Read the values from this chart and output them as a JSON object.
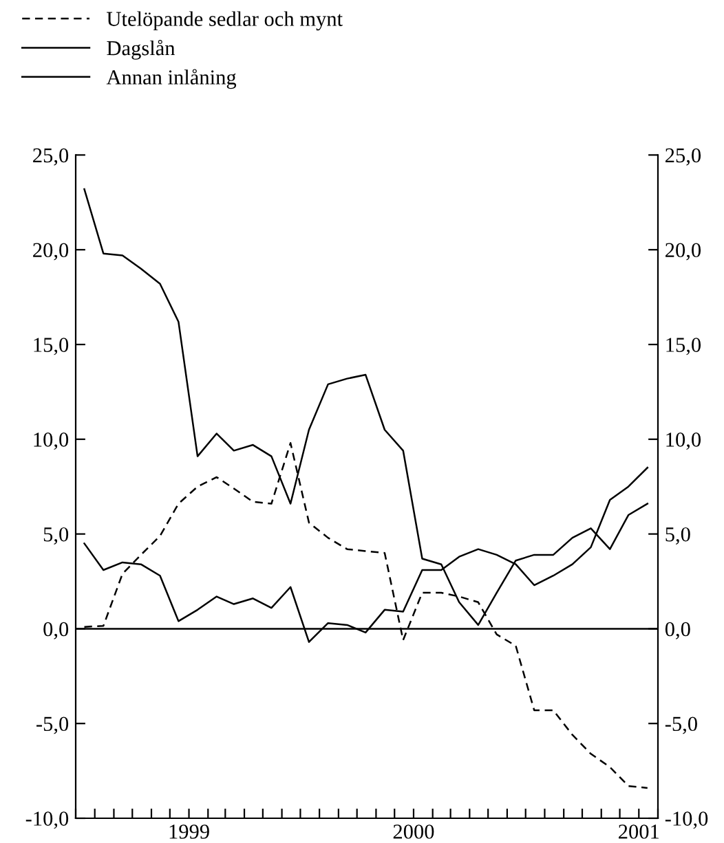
{
  "chart_data": {
    "type": "line",
    "x": [
      "1998-07-15",
      "1998-08-15",
      "1998-09-15",
      "1998-10-15",
      "1998-11-15",
      "1998-12-15",
      "1999-01-15",
      "1999-02-15",
      "1999-03-15",
      "1999-04-15",
      "1999-05-15",
      "1999-06-15",
      "1999-07-15",
      "1999-08-15",
      "1999-09-15",
      "1999-10-15",
      "1999-11-15",
      "1999-12-15",
      "2000-01-15",
      "2000-02-15",
      "2000-03-15",
      "2000-04-15",
      "2000-05-15",
      "2000-06-15",
      "2000-07-15",
      "2000-08-15",
      "2000-09-15",
      "2000-10-15",
      "2000-11-15",
      "2000-12-15",
      "2001-01-15"
    ],
    "series": [
      {
        "name": "Utelöpande sedlar och mynt",
        "color": "#000000",
        "line_style": "dashed",
        "values": [
          0.1,
          0.15,
          2.9,
          3.9,
          4.9,
          6.6,
          7.5,
          8.0,
          7.4,
          6.7,
          6.6,
          9.8,
          5.6,
          4.8,
          4.2,
          4.1,
          4.0,
          -0.6,
          1.9,
          1.9,
          1.7,
          1.4,
          -0.3,
          -0.9,
          -4.3,
          -4.3,
          -5.6,
          -6.6,
          -7.3,
          -8.3,
          -8.4
        ]
      },
      {
        "name": "Dagslån",
        "color": "#000000",
        "line_style": "solid",
        "values": [
          23.2,
          19.8,
          19.7,
          19.0,
          18.2,
          16.2,
          9.1,
          10.3,
          9.4,
          9.7,
          9.1,
          6.6,
          10.5,
          12.9,
          13.2,
          13.4,
          10.5,
          9.4,
          3.7,
          3.4,
          1.4,
          0.2,
          1.9,
          3.6,
          3.9,
          3.9,
          4.8,
          5.3,
          4.2,
          6.0,
          6.6
        ]
      },
      {
        "name": "Annan inlåning",
        "color": "#000000",
        "line_style": "solid",
        "values": [
          4.5,
          3.1,
          3.5,
          3.4,
          2.8,
          0.4,
          1.0,
          1.7,
          1.3,
          1.6,
          1.1,
          2.2,
          -0.7,
          0.3,
          0.2,
          -0.2,
          1.0,
          0.9,
          3.1,
          3.1,
          3.8,
          4.2,
          3.9,
          3.4,
          2.3,
          2.8,
          3.4,
          4.3,
          6.8,
          7.5,
          8.5
        ]
      }
    ],
    "xlim": [
      "1998-07-01",
      "2001-02-01"
    ],
    "xticks": [
      {
        "value": "1998-07-01",
        "label": null
      },
      {
        "value": "1998-08-01",
        "label": null
      },
      {
        "value": "1998-09-01",
        "label": null
      },
      {
        "value": "1998-10-01",
        "label": null
      },
      {
        "value": "1998-11-01",
        "label": null
      },
      {
        "value": "1998-12-01",
        "label": null
      },
      {
        "value": "1999-01-01",
        "label": "1999"
      },
      {
        "value": "1999-02-01",
        "label": null
      },
      {
        "value": "1999-03-01",
        "label": null
      },
      {
        "value": "1999-04-01",
        "label": null
      },
      {
        "value": "1999-05-01",
        "label": null
      },
      {
        "value": "1999-06-01",
        "label": null
      },
      {
        "value": "1999-07-01",
        "label": null
      },
      {
        "value": "1999-08-01",
        "label": null
      },
      {
        "value": "1999-09-01",
        "label": null
      },
      {
        "value": "1999-10-01",
        "label": null
      },
      {
        "value": "1999-11-01",
        "label": null
      },
      {
        "value": "1999-12-01",
        "label": null
      },
      {
        "value": "2000-01-01",
        "label": "2000"
      },
      {
        "value": "2000-02-01",
        "label": null
      },
      {
        "value": "2000-03-01",
        "label": null
      },
      {
        "value": "2000-04-01",
        "label": null
      },
      {
        "value": "2000-05-01",
        "label": null
      },
      {
        "value": "2000-06-01",
        "label": null
      },
      {
        "value": "2000-07-01",
        "label": null
      },
      {
        "value": "2000-08-01",
        "label": null
      },
      {
        "value": "2000-09-01",
        "label": null
      },
      {
        "value": "2000-10-01",
        "label": null
      },
      {
        "value": "2000-11-01",
        "label": null
      },
      {
        "value": "2000-12-01",
        "label": null
      },
      {
        "value": "2001-01-01",
        "label": "2001"
      },
      {
        "value": "2001-02-01",
        "label": null
      }
    ],
    "ylim": [
      -10,
      25
    ],
    "yticks": [
      {
        "value": -10,
        "label": "-10,0"
      },
      {
        "value": -5,
        "label": "-5,0"
      },
      {
        "value": 0,
        "label": "0,0"
      },
      {
        "value": 5,
        "label": "5,0"
      },
      {
        "value": 10,
        "label": "10,0"
      },
      {
        "value": 15,
        "label": "15,0"
      },
      {
        "value": 20,
        "label": "20,0"
      },
      {
        "value": 25,
        "label": "25,0"
      }
    ],
    "y2lim": [
      -10,
      25
    ],
    "y2ticks": [
      {
        "value": -10,
        "label": "-10,0"
      },
      {
        "value": -5,
        "label": "-5,0"
      },
      {
        "value": 0,
        "label": "0,0"
      },
      {
        "value": 5,
        "label": "5,0"
      },
      {
        "value": 10,
        "label": "10,0"
      },
      {
        "value": 15,
        "label": "15,0"
      },
      {
        "value": 20,
        "label": "20,0"
      },
      {
        "value": 25,
        "label": "25,0"
      }
    ],
    "ref_lines": [
      {
        "axis": "y",
        "value": 0,
        "color": "#000000",
        "line_style": "solid"
      }
    ],
    "grid": false,
    "legend": "top"
  }
}
